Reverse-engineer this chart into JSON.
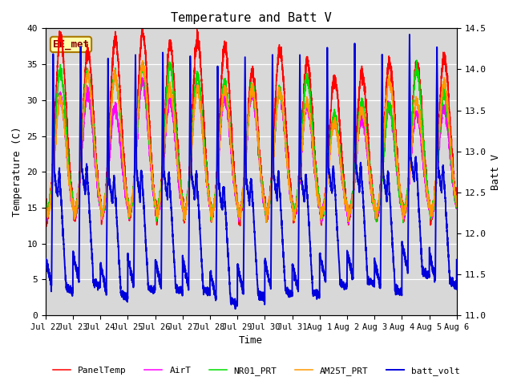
{
  "title": "Temperature and Batt V",
  "xlabel": "Time",
  "ylabel_left": "Temperature (C)",
  "ylabel_right": "Batt V",
  "annotation": "EE_met",
  "background_color": "#d8d8d8",
  "ylim_left": [
    0,
    40
  ],
  "ylim_right": [
    11.0,
    14.5
  ],
  "yticks_left": [
    0,
    5,
    10,
    15,
    20,
    25,
    30,
    35,
    40
  ],
  "yticks_right": [
    11.0,
    11.5,
    12.0,
    12.5,
    13.0,
    13.5,
    14.0,
    14.5
  ],
  "series": {
    "PanelTemp": {
      "color": "#ff0000",
      "lw": 1.1
    },
    "AirT": {
      "color": "#ff00ff",
      "lw": 1.1
    },
    "NR01_PRT": {
      "color": "#00dd00",
      "lw": 1.1
    },
    "AM25T_PRT": {
      "color": "#ff9900",
      "lw": 1.1
    },
    "batt_volt": {
      "color": "#0000dd",
      "lw": 1.4
    }
  },
  "n_days": 15,
  "tick_labels": [
    "Jul 22",
    "Jul 23",
    "Jul 24",
    "Jul 25",
    "Jul 26",
    "Jul 27",
    "Jul 28",
    "Jul 29",
    "Jul 30",
    "Jul 31",
    "Aug 1",
    "Aug 2",
    "Aug 3",
    "Aug 4",
    "Aug 5",
    "Aug 6"
  ],
  "font_family": "monospace",
  "title_fontsize": 11,
  "label_fontsize": 9,
  "tick_fontsize": 8,
  "xtick_fontsize": 7.5
}
